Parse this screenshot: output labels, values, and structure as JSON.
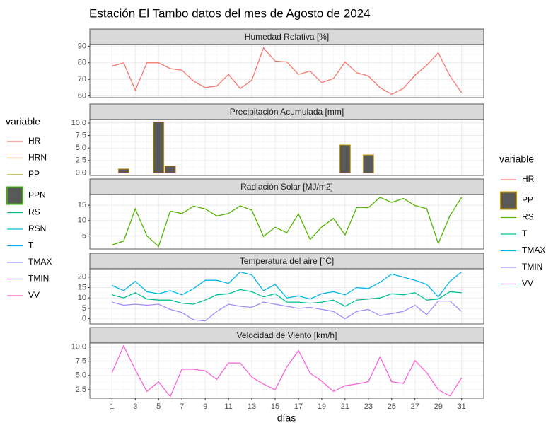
{
  "title": "Estación El Tambo datos del mes de Agosto de 2024",
  "x_label": "días",
  "legends": [
    {
      "title": "variable",
      "items": [
        {
          "name": "HR",
          "color": "#F8766D"
        },
        {
          "name": "HRN",
          "color": "#D89000"
        },
        {
          "name": "PP",
          "color": "#A3A500"
        },
        {
          "name": "PPN",
          "color": "#39B600",
          "fill": "#595959"
        },
        {
          "name": "RS",
          "color": "#00BF7D"
        },
        {
          "name": "RSN",
          "color": "#00BFC4"
        },
        {
          "name": "T",
          "color": "#00B0F6"
        },
        {
          "name": "TMAX",
          "color": "#9590FF"
        },
        {
          "name": "TMIN",
          "color": "#E76BF3"
        },
        {
          "name": "VV",
          "color": "#FF62BC"
        }
      ]
    },
    {
      "title": "variable",
      "items": [
        {
          "name": "HR",
          "color": "#F8766D"
        },
        {
          "name": "PP",
          "color": "#C49A00",
          "fill": "#595959"
        },
        {
          "name": "RS",
          "color": "#53B400"
        },
        {
          "name": "T",
          "color": "#00C094"
        },
        {
          "name": "TMAX",
          "color": "#00B6EB"
        },
        {
          "name": "TMIN",
          "color": "#A58AFF"
        },
        {
          "name": "VV",
          "color": "#FB61D7"
        }
      ]
    }
  ],
  "chart_data": [
    {
      "type": "line",
      "title": "Humedad Relativa [%]",
      "x": [
        1,
        2,
        3,
        4,
        5,
        6,
        7,
        8,
        9,
        10,
        11,
        12,
        13,
        14,
        15,
        16,
        17,
        18,
        19,
        20,
        21,
        22,
        23,
        24,
        25,
        26,
        27,
        28,
        29,
        30,
        31
      ],
      "xlim": [
        -0.9,
        32.9
      ],
      "ylim": [
        59,
        91
      ],
      "yticks": [
        60,
        70,
        80,
        90
      ],
      "grid": true,
      "series": [
        {
          "name": "HR",
          "color": "#F8766D",
          "values": [
            78,
            80,
            63.5,
            80,
            80,
            76.5,
            75.5,
            69,
            65,
            66,
            73,
            64.5,
            69.5,
            89,
            81,
            80.5,
            73,
            75,
            68,
            70.5,
            80.5,
            74,
            72,
            65,
            61,
            64.5,
            72.5,
            78.5,
            86,
            72,
            62
          ]
        }
      ]
    },
    {
      "type": "bar",
      "title": "Precipitación Acumulada [mm]",
      "x": [
        1,
        2,
        3,
        4,
        5,
        6,
        7,
        8,
        9,
        10,
        11,
        12,
        13,
        14,
        15,
        16,
        17,
        18,
        19,
        20,
        21,
        22,
        23,
        24,
        25,
        26,
        27,
        28,
        29,
        30,
        31
      ],
      "xlim": [
        -0.9,
        32.9
      ],
      "ylim": [
        -0.5,
        10.7
      ],
      "yticks": [
        {
          "value": 0,
          "label": "0.0"
        },
        {
          "value": 2.5,
          "label": "2.5"
        },
        {
          "value": 5,
          "label": "5.0"
        },
        {
          "value": 7.5,
          "label": "7.5"
        },
        {
          "value": 10,
          "label": "10.0"
        }
      ],
      "grid": true,
      "series": [
        {
          "name": "PP",
          "color": "#C49A00",
          "fill": "#595959",
          "values": [
            0,
            0.8,
            0,
            0,
            10.2,
            1.4,
            0,
            0,
            0,
            0,
            0,
            0,
            0,
            0,
            0,
            0,
            0,
            0,
            0,
            0,
            5.6,
            0,
            3.6,
            0,
            0,
            0,
            0,
            0,
            0,
            0,
            0
          ]
        }
      ]
    },
    {
      "type": "line",
      "title": "Radiación Solar [MJ/m2]",
      "x": [
        1,
        2,
        3,
        4,
        5,
        6,
        7,
        8,
        9,
        10,
        11,
        12,
        13,
        14,
        15,
        16,
        17,
        18,
        19,
        20,
        21,
        22,
        23,
        24,
        25,
        26,
        27,
        28,
        29,
        30,
        31
      ],
      "xlim": [
        -0.9,
        32.9
      ],
      "ylim": [
        0.7,
        18.5
      ],
      "yticks": [
        5,
        10,
        15
      ],
      "grid": true,
      "series": [
        {
          "name": "RS",
          "color": "#53B400",
          "values": [
            2,
            3.3,
            13.8,
            5,
            1.5,
            13.1,
            12.3,
            14.7,
            13.8,
            11.5,
            12.3,
            14.8,
            13.4,
            4.8,
            7.8,
            6,
            12.2,
            3.8,
            7.9,
            10.7,
            5.3,
            14.3,
            14.2,
            17.6,
            15.9,
            17.2,
            14.9,
            13.9,
            2.5,
            11.6,
            17.6
          ]
        }
      ]
    },
    {
      "type": "line",
      "title": "Temperatura del aire [°C]",
      "x": [
        1,
        2,
        3,
        4,
        5,
        6,
        7,
        8,
        9,
        10,
        11,
        12,
        13,
        14,
        15,
        16,
        17,
        18,
        19,
        20,
        21,
        22,
        23,
        24,
        25,
        26,
        27,
        28,
        29,
        30,
        31
      ],
      "xlim": [
        -0.9,
        32.9
      ],
      "ylim": [
        -2.5,
        24
      ],
      "yticks": [
        0,
        5,
        10,
        15,
        20
      ],
      "grid": true,
      "series": [
        {
          "name": "T",
          "color": "#00C094",
          "values": [
            11.5,
            10,
            12.5,
            9.5,
            9,
            9,
            7.5,
            7,
            9,
            11.5,
            12,
            14,
            13,
            10.5,
            12,
            8,
            8,
            7.5,
            8,
            9,
            6,
            9,
            9.5,
            10,
            12,
            11.5,
            12.5,
            9,
            9.5,
            13,
            12.5
          ]
        },
        {
          "name": "TMAX",
          "color": "#00B6EB",
          "values": [
            16,
            13.5,
            18,
            13,
            12,
            13.5,
            11.5,
            14.5,
            18.5,
            18.5,
            17,
            22.5,
            21,
            13.5,
            16.5,
            10,
            11,
            9.5,
            12,
            13,
            11.5,
            15,
            14.5,
            17.5,
            21.5,
            20,
            18.5,
            16.5,
            10.5,
            18,
            22.5
          ]
        },
        {
          "name": "TMIN",
          "color": "#A58AFF",
          "values": [
            8,
            6.5,
            7,
            6.5,
            7,
            4.5,
            3,
            -0.5,
            -1,
            3.5,
            7,
            6,
            5.5,
            8,
            7,
            6,
            5,
            5.5,
            4.5,
            3.5,
            0,
            3.5,
            4.5,
            1.5,
            2.5,
            3.5,
            6.5,
            2,
            8.5,
            8.5,
            3.5
          ]
        }
      ]
    },
    {
      "type": "line",
      "title": "Velocidad de Viento [km/h]",
      "x": [
        1,
        2,
        3,
        4,
        5,
        6,
        7,
        8,
        9,
        10,
        11,
        12,
        13,
        14,
        15,
        16,
        17,
        18,
        19,
        20,
        21,
        22,
        23,
        24,
        25,
        26,
        27,
        28,
        29,
        30,
        31
      ],
      "xlim": [
        -0.9,
        32.9
      ],
      "xticks": [
        1,
        3,
        5,
        7,
        9,
        11,
        13,
        15,
        17,
        19,
        21,
        23,
        25,
        27,
        29,
        31
      ],
      "ylim": [
        1,
        10.7
      ],
      "yticks": [
        {
          "value": 2.5,
          "label": "2.5"
        },
        {
          "value": 5,
          "label": "5.0"
        },
        {
          "value": 7.5,
          "label": "7.5"
        },
        {
          "value": 10,
          "label": "10.0"
        }
      ],
      "grid": true,
      "series": [
        {
          "name": "VV",
          "color": "#FB61D7",
          "values": [
            5.5,
            10.2,
            6,
            2.2,
            3.9,
            1.3,
            6.1,
            6.1,
            5.8,
            4.3,
            7.2,
            7.2,
            4.7,
            3.5,
            2.5,
            6.5,
            9.4,
            5.4,
            4,
            2.2,
            3.2,
            3.5,
            3.9,
            8.3,
            3.9,
            3.6,
            7.6,
            5.5,
            2.5,
            1.4,
            4.6
          ]
        }
      ]
    }
  ]
}
